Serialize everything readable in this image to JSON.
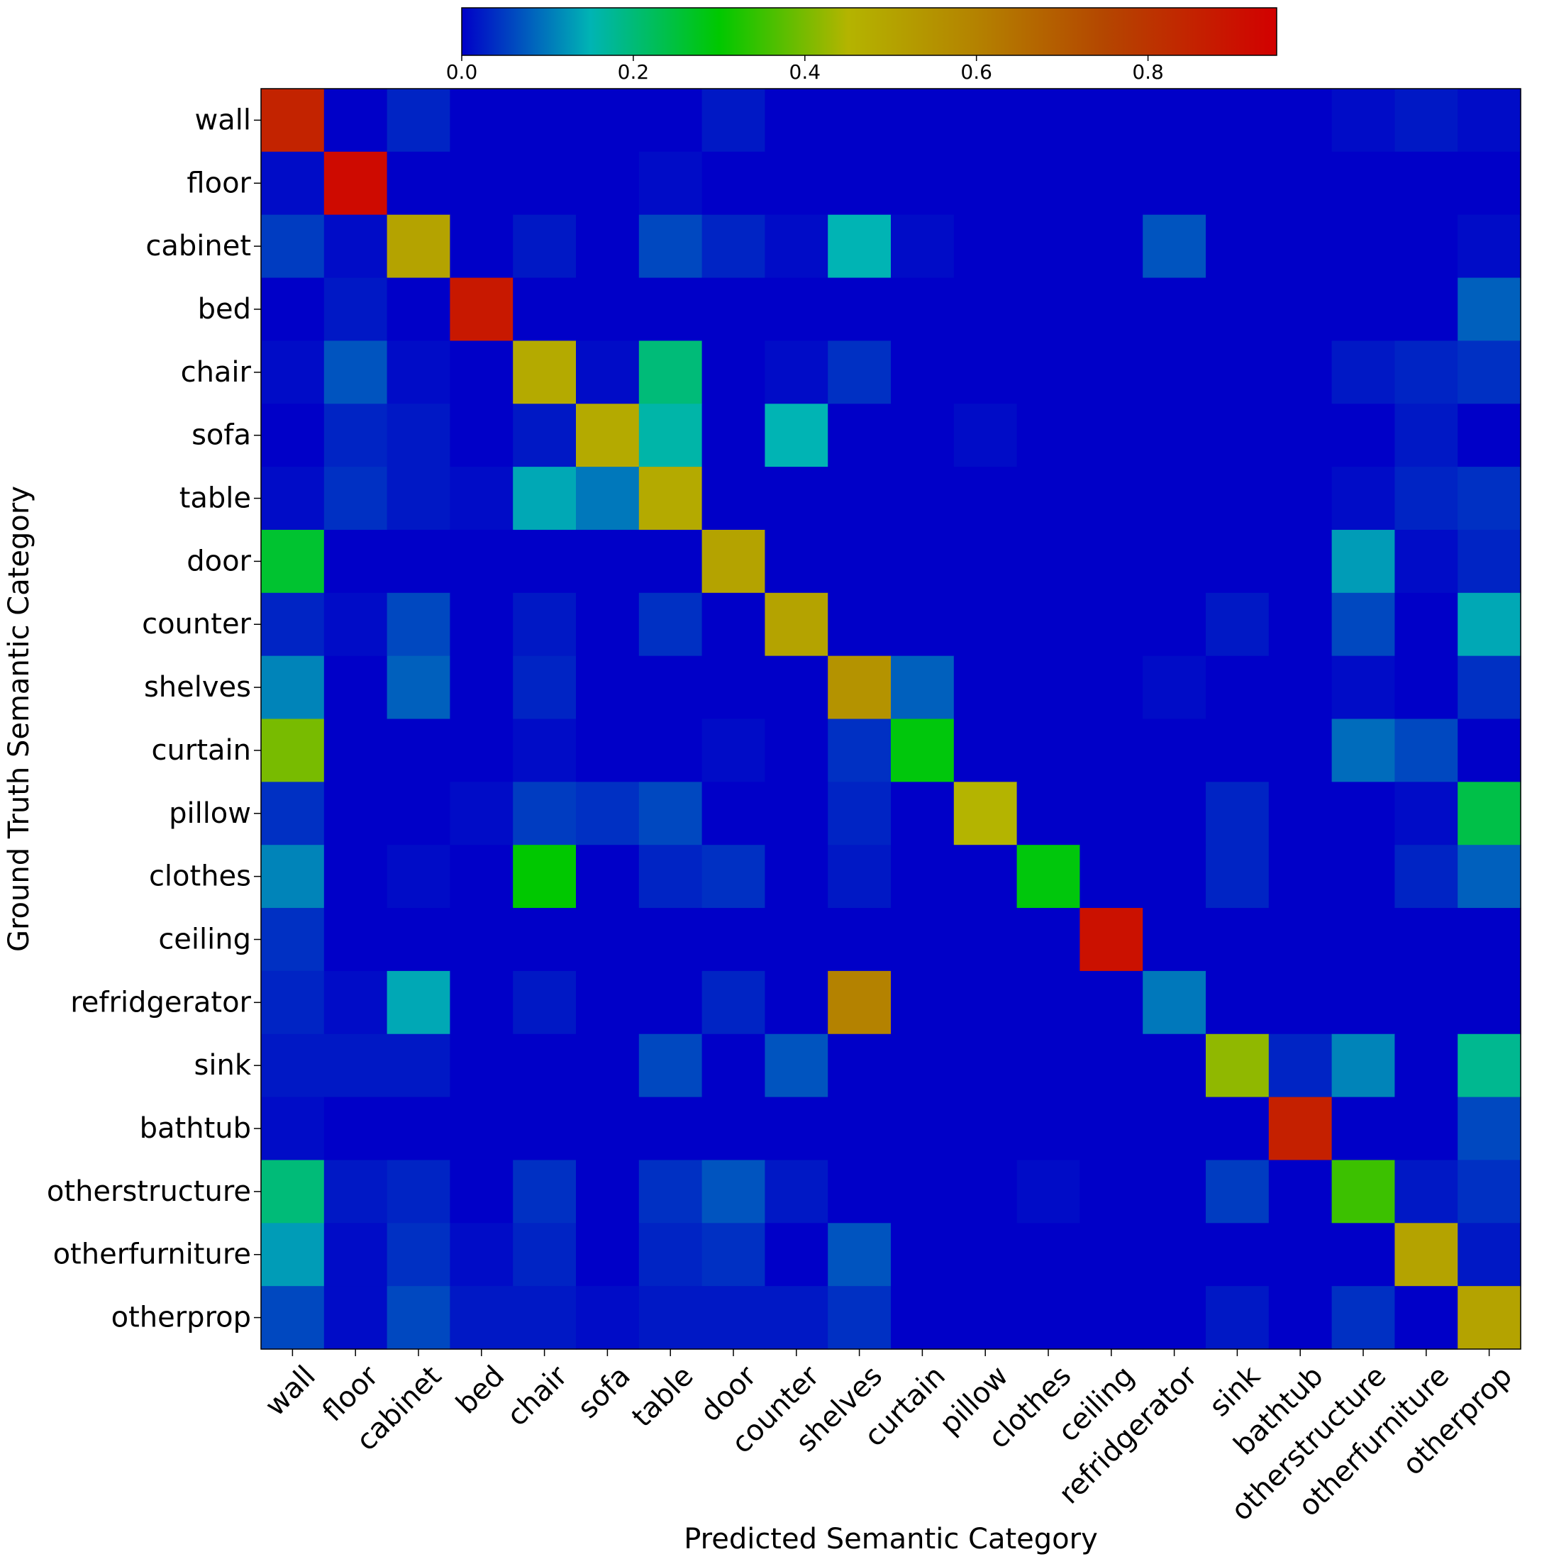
{
  "chart_data": {
    "type": "heatmap",
    "xlabel": "Predicted Semantic Category",
    "ylabel": "Ground Truth Semantic Category",
    "categories": [
      "wall",
      "floor",
      "cabinet",
      "bed",
      "chair",
      "sofa",
      "table",
      "door",
      "counter",
      "shelves",
      "curtain",
      "pillow",
      "clothes",
      "ceiling",
      "refridgerator",
      "sink",
      "bathtub",
      "otherstructure",
      "otherfurniture",
      "otherprop"
    ],
    "colorbar": {
      "range": [
        0,
        0.95
      ],
      "ticks": [
        0.0,
        0.2,
        0.4,
        0.6,
        0.8
      ],
      "tick_labels": [
        "0.0",
        "0.2",
        "0.4",
        "0.6",
        "0.8"
      ],
      "colormap_stops": [
        {
          "value": 0.0,
          "color": "#0000c8"
        },
        {
          "value": 0.15,
          "color": "#00b4b4"
        },
        {
          "value": 0.3,
          "color": "#00c800"
        },
        {
          "value": 0.45,
          "color": "#b4b400"
        },
        {
          "value": 0.6,
          "color": "#b48200"
        },
        {
          "value": 0.75,
          "color": "#b44600"
        },
        {
          "value": 0.95,
          "color": "#d20000"
        }
      ]
    },
    "matrix": [
      [
        0.85,
        0,
        0.03,
        0,
        0,
        0,
        0,
        0.02,
        0,
        0,
        0,
        0,
        0,
        0,
        0,
        0,
        0,
        0.01,
        0.02,
        0.01
      ],
      [
        0.01,
        0.92,
        0,
        0,
        0,
        0,
        0.01,
        0,
        0,
        0,
        0,
        0,
        0,
        0,
        0,
        0,
        0,
        0,
        0,
        0
      ],
      [
        0.05,
        0.01,
        0.5,
        0,
        0.02,
        0,
        0.06,
        0.03,
        0.01,
        0.15,
        0.01,
        0,
        0,
        0,
        0.07,
        0,
        0,
        0,
        0,
        0.01
      ],
      [
        0,
        0.02,
        0,
        0.88,
        0,
        0,
        0,
        0,
        0,
        0,
        0,
        0,
        0,
        0,
        0,
        0,
        0,
        0,
        0,
        0.08
      ],
      [
        0.01,
        0.07,
        0.01,
        0,
        0.48,
        0.01,
        0.2,
        0,
        0.01,
        0.04,
        0,
        0,
        0,
        0,
        0,
        0,
        0,
        0.02,
        0.03,
        0.04
      ],
      [
        0,
        0.03,
        0.02,
        0,
        0.02,
        0.48,
        0.16,
        0,
        0.15,
        0,
        0,
        0.01,
        0,
        0,
        0,
        0,
        0,
        0,
        0.02,
        0
      ],
      [
        0.01,
        0.04,
        0.02,
        0.01,
        0.14,
        0.1,
        0.48,
        0,
        0,
        0,
        0,
        0,
        0,
        0,
        0,
        0,
        0,
        0.01,
        0.03,
        0.04
      ],
      [
        0.26,
        0,
        0,
        0,
        0,
        0,
        0,
        0.5,
        0,
        0,
        0,
        0,
        0,
        0,
        0,
        0,
        0,
        0.13,
        0.01,
        0.03
      ],
      [
        0.03,
        0.01,
        0.06,
        0,
        0.02,
        0,
        0.04,
        0,
        0.5,
        0,
        0,
        0,
        0,
        0,
        0,
        0.02,
        0,
        0.06,
        0,
        0.14
      ],
      [
        0.11,
        0,
        0.08,
        0,
        0.03,
        0,
        0,
        0,
        0,
        0.55,
        0.08,
        0,
        0,
        0,
        0.01,
        0,
        0,
        0.01,
        0,
        0.04
      ],
      [
        0.4,
        0,
        0,
        0,
        0.01,
        0,
        0,
        0.01,
        0,
        0.04,
        0.29,
        0,
        0,
        0,
        0,
        0,
        0,
        0.09,
        0.06,
        0
      ],
      [
        0.04,
        0,
        0,
        0.01,
        0.05,
        0.04,
        0.06,
        0,
        0,
        0.03,
        0,
        0.45,
        0,
        0,
        0,
        0.03,
        0,
        0,
        0.01,
        0.24
      ],
      [
        0.11,
        0,
        0.01,
        0,
        0.3,
        0,
        0.03,
        0.04,
        0,
        0.02,
        0,
        0,
        0.29,
        0,
        0,
        0.03,
        0,
        0,
        0.03,
        0.08
      ],
      [
        0.04,
        0,
        0,
        0,
        0,
        0,
        0,
        0,
        0,
        0,
        0,
        0,
        0,
        0.9,
        0,
        0,
        0,
        0,
        0,
        0
      ],
      [
        0.03,
        0.01,
        0.14,
        0,
        0.02,
        0,
        0,
        0.03,
        0,
        0.6,
        0,
        0,
        0,
        0,
        0.1,
        0,
        0,
        0,
        0,
        0
      ],
      [
        0.02,
        0.02,
        0.02,
        0,
        0,
        0,
        0.06,
        0,
        0.07,
        0,
        0,
        0,
        0,
        0,
        0,
        0.42,
        0.03,
        0.11,
        0,
        0.18
      ],
      [
        0.01,
        0,
        0,
        0,
        0,
        0,
        0,
        0,
        0,
        0,
        0,
        0,
        0,
        0,
        0,
        0,
        0.86,
        0,
        0,
        0.06
      ],
      [
        0.2,
        0.02,
        0.03,
        0,
        0.04,
        0,
        0.04,
        0.07,
        0.02,
        0,
        0,
        0,
        0.01,
        0,
        0,
        0.05,
        0,
        0.35,
        0.02,
        0.04
      ],
      [
        0.13,
        0.01,
        0.04,
        0.01,
        0.03,
        0,
        0.03,
        0.04,
        0,
        0.07,
        0,
        0,
        0,
        0,
        0,
        0,
        0,
        0,
        0.5,
        0.02
      ],
      [
        0.06,
        0.01,
        0.06,
        0.02,
        0.02,
        0.01,
        0.02,
        0.02,
        0.02,
        0.04,
        0,
        0,
        0,
        0,
        0,
        0.02,
        0,
        0.04,
        0,
        0.5
      ]
    ]
  }
}
